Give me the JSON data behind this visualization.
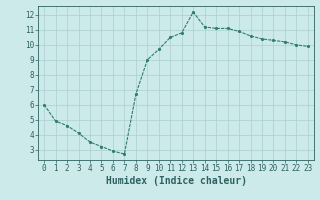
{
  "x": [
    0,
    1,
    2,
    3,
    4,
    5,
    6,
    7,
    8,
    9,
    10,
    11,
    12,
    13,
    14,
    15,
    16,
    17,
    18,
    19,
    20,
    21,
    22,
    23
  ],
  "y": [
    6.0,
    4.9,
    4.6,
    4.1,
    3.5,
    3.2,
    2.9,
    2.7,
    6.7,
    9.0,
    9.7,
    10.5,
    10.8,
    12.2,
    11.2,
    11.1,
    11.1,
    10.9,
    10.6,
    10.4,
    10.3,
    10.2,
    10.0,
    9.9
  ],
  "xlabel": "Humidex (Indice chaleur)",
  "xlim": [
    -0.5,
    23.5
  ],
  "ylim": [
    2.3,
    12.6
  ],
  "yticks": [
    3,
    4,
    5,
    6,
    7,
    8,
    9,
    10,
    11,
    12
  ],
  "xticks": [
    0,
    1,
    2,
    3,
    4,
    5,
    6,
    7,
    8,
    9,
    10,
    11,
    12,
    13,
    14,
    15,
    16,
    17,
    18,
    19,
    20,
    21,
    22,
    23
  ],
  "line_color": "#2e7d6e",
  "bg_color": "#cceaea",
  "grid_color": "#aacece",
  "axis_color": "#2e6060",
  "tick_fontsize": 5.5,
  "xlabel_fontsize": 7.0,
  "linewidth": 0.8,
  "markersize": 2.5
}
